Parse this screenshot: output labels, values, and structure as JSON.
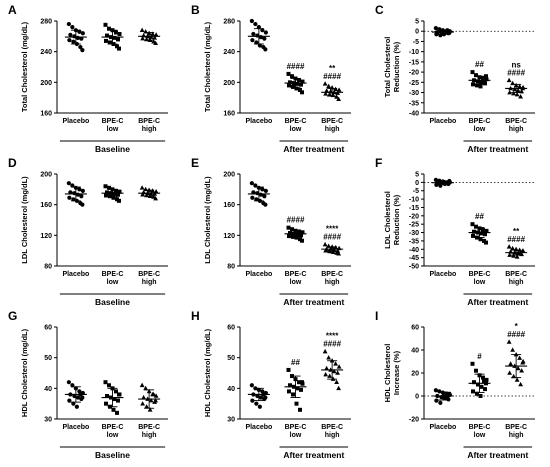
{
  "chart_data": [
    {
      "panel": "A",
      "type": "scatter",
      "ylabel": "Total Cholesterol (mg/dL)",
      "ylim": [
        160,
        280
      ],
      "yticks": [
        160,
        200,
        240,
        280
      ],
      "categories": [
        [
          "Placebo"
        ],
        [
          "BPE-C",
          "low"
        ],
        [
          "BPE-C",
          "high"
        ]
      ],
      "group_label": "Baseline",
      "group_span": [
        0,
        2
      ],
      "ref_line": null,
      "series": [
        {
          "marker": "circle",
          "values": [
            276,
            272,
            268,
            266,
            264,
            262,
            260,
            258,
            257,
            255,
            253,
            250,
            246,
            242
          ],
          "mean": 259,
          "sd": 9,
          "annotations": []
        },
        {
          "marker": "square",
          "values": [
            275,
            270,
            268,
            265,
            263,
            261,
            259,
            258,
            256,
            254,
            252,
            250,
            247,
            244
          ],
          "mean": 259,
          "sd": 9,
          "annotations": []
        },
        {
          "marker": "triangle",
          "values": [
            268,
            266,
            264,
            263,
            262,
            261,
            260,
            259,
            258,
            257,
            256,
            255,
            253,
            251
          ],
          "mean": 260,
          "sd": 5,
          "annotations": []
        }
      ]
    },
    {
      "panel": "B",
      "type": "scatter",
      "ylabel": "Total Cholesterol (mg/dL)",
      "ylim": [
        160,
        280
      ],
      "yticks": [
        160,
        200,
        240,
        280
      ],
      "categories": [
        [
          "Placebo"
        ],
        [
          "BPE-C",
          "low"
        ],
        [
          "BPE-C",
          "high"
        ]
      ],
      "group_label": "After treatment",
      "group_span": [
        1,
        2
      ],
      "ref_line": null,
      "series": [
        {
          "marker": "circle",
          "values": [
            280,
            276,
            272,
            268,
            265,
            263,
            261,
            259,
            257,
            255,
            252,
            248,
            246,
            243
          ],
          "mean": 260,
          "sd": 10,
          "annotations": []
        },
        {
          "marker": "square",
          "values": [
            211,
            208,
            205,
            203,
            201,
            200,
            199,
            198,
            197,
            196,
            194,
            192,
            190,
            187
          ],
          "mean": 199,
          "sd": 6,
          "annotations": [
            "####"
          ]
        },
        {
          "marker": "triangle",
          "values": [
            198,
            195,
            193,
            191,
            190,
            189,
            188,
            187,
            186,
            185,
            184,
            183,
            181,
            178
          ],
          "mean": 187,
          "sd": 5,
          "annotations": [
            "**",
            "####"
          ]
        }
      ]
    },
    {
      "panel": "C",
      "type": "scatter",
      "ylabel": "Total Cholesterol Reduction (%)",
      "ylim": [
        -40,
        5
      ],
      "yticks": [
        -40,
        -35,
        -30,
        -25,
        -20,
        -15,
        -10,
        -5,
        0,
        5
      ],
      "categories": [
        [
          "Placebo"
        ],
        [
          "BPE-C",
          "low"
        ],
        [
          "BPE-C",
          "high"
        ]
      ],
      "group_label": "After treatment",
      "group_span": [
        1,
        2
      ],
      "ref_line": 0,
      "series": [
        {
          "marker": "circle",
          "values": [
            1.5,
            1,
            0.5,
            0,
            0,
            -0.5,
            -0.5,
            -1,
            -1,
            -1.5,
            -2,
            -1.5,
            0.5,
            -0.8
          ],
          "mean": -0.4,
          "sd": 1,
          "annotations": []
        },
        {
          "marker": "square",
          "values": [
            -20,
            -21.5,
            -22.5,
            -23,
            -23.5,
            -24,
            -24.5,
            -25,
            -25.5,
            -26,
            -26.5,
            -27,
            -24,
            -22
          ],
          "mean": -24,
          "sd": 2,
          "annotations": [
            "##"
          ]
        },
        {
          "marker": "triangle",
          "values": [
            -24,
            -25.5,
            -26.5,
            -27,
            -27.5,
            -28,
            -28.5,
            -29,
            -29.5,
            -30,
            -30.5,
            -31,
            -32,
            -28
          ],
          "mean": -28,
          "sd": 2,
          "annotations": [
            "ns",
            "####"
          ]
        }
      ]
    },
    {
      "panel": "D",
      "type": "scatter",
      "ylabel": "LDL Cholesterol (mg/dL)",
      "ylim": [
        80,
        200
      ],
      "yticks": [
        80,
        120,
        160,
        200
      ],
      "categories": [
        [
          "Placebo"
        ],
        [
          "BPE-C",
          "low"
        ],
        [
          "BPE-C",
          "high"
        ]
      ],
      "group_label": "Baseline",
      "group_span": [
        0,
        2
      ],
      "ref_line": null,
      "series": [
        {
          "marker": "circle",
          "values": [
            188,
            185,
            182,
            180,
            178,
            176,
            175,
            173,
            171,
            169,
            167,
            165,
            162,
            160
          ],
          "mean": 174,
          "sd": 9,
          "annotations": []
        },
        {
          "marker": "square",
          "values": [
            184,
            182,
            180,
            178,
            177,
            176,
            175,
            174,
            173,
            172,
            171,
            169,
            167,
            165
          ],
          "mean": 175,
          "sd": 5,
          "annotations": []
        },
        {
          "marker": "triangle",
          "values": [
            182,
            180,
            179,
            178,
            177,
            176,
            175,
            174,
            174,
            173,
            172,
            171,
            170,
            168
          ],
          "mean": 175,
          "sd": 4,
          "annotations": []
        }
      ]
    },
    {
      "panel": "E",
      "type": "scatter",
      "ylabel": "LDL Cholesterol (mg/dL)",
      "ylim": [
        80,
        200
      ],
      "yticks": [
        80,
        120,
        160,
        200
      ],
      "categories": [
        [
          "Placebo"
        ],
        [
          "BPE-C",
          "low"
        ],
        [
          "BPE-C",
          "high"
        ]
      ],
      "group_label": "After treatment",
      "group_span": [
        1,
        2
      ],
      "ref_line": null,
      "series": [
        {
          "marker": "circle",
          "values": [
            188,
            185,
            182,
            180,
            178,
            176,
            175,
            173,
            171,
            169,
            167,
            165,
            162,
            160
          ],
          "mean": 174,
          "sd": 9,
          "annotations": []
        },
        {
          "marker": "square",
          "values": [
            130,
            128,
            126,
            125,
            124,
            123,
            122,
            121,
            120,
            119,
            118,
            117,
            115,
            113
          ],
          "mean": 122,
          "sd": 4,
          "annotations": [
            "####"
          ]
        },
        {
          "marker": "triangle",
          "values": [
            108,
            106,
            105,
            104,
            103,
            102,
            102,
            101,
            100,
            100,
            99,
            98,
            97,
            96
          ],
          "mean": 102,
          "sd": 3,
          "annotations": [
            "****",
            "####"
          ]
        }
      ]
    },
    {
      "panel": "F",
      "type": "scatter",
      "ylabel": "LDL Cholesterol Reduction (%)",
      "ylim": [
        -50,
        5
      ],
      "yticks": [
        -50,
        -45,
        -40,
        -35,
        -30,
        -25,
        -20,
        -15,
        -10,
        -5,
        0,
        5
      ],
      "categories": [
        [
          "Placebo"
        ],
        [
          "BPE-C",
          "low"
        ],
        [
          "BPE-C",
          "high"
        ]
      ],
      "group_label": "After treatment",
      "group_span": [
        1,
        2
      ],
      "ref_line": 0,
      "series": [
        {
          "marker": "circle",
          "values": [
            1.5,
            1,
            0.5,
            0,
            0,
            -0.5,
            -0.5,
            -1,
            -1,
            -1.5,
            -2,
            0.2,
            -0.2,
            0.8
          ],
          "mean": -0.2,
          "sd": 1,
          "annotations": []
        },
        {
          "marker": "square",
          "values": [
            -25,
            -26.5,
            -27.5,
            -28.5,
            -29,
            -29.5,
            -30,
            -30.5,
            -31,
            -32,
            -33,
            -34,
            -35,
            -36
          ],
          "mean": -30,
          "sd": 3,
          "annotations": [
            "##"
          ]
        },
        {
          "marker": "triangle",
          "values": [
            -38.5,
            -39.5,
            -40,
            -40.5,
            -41,
            -41.5,
            -42,
            -42.5,
            -43,
            -43.5,
            -44,
            -44.5,
            -42,
            -41
          ],
          "mean": -42,
          "sd": 1.5,
          "annotations": [
            "**",
            "####"
          ]
        }
      ]
    },
    {
      "panel": "G",
      "type": "scatter",
      "ylabel": "HDL Cholesterol (mg/dL)",
      "ylim": [
        30,
        60
      ],
      "yticks": [
        30,
        40,
        50,
        60
      ],
      "categories": [
        [
          "Placebo"
        ],
        [
          "BPE-C",
          "low"
        ],
        [
          "BPE-C",
          "high"
        ]
      ],
      "group_label": "Baseline",
      "group_span": [
        0,
        2
      ],
      "ref_line": null,
      "series": [
        {
          "marker": "circle",
          "values": [
            42,
            41,
            40,
            39,
            38.5,
            38,
            37.5,
            37,
            36.5,
            36,
            35,
            34,
            38,
            37
          ],
          "mean": 38,
          "sd": 2.5,
          "annotations": []
        },
        {
          "marker": "square",
          "values": [
            42,
            41,
            40,
            39,
            38,
            37.5,
            37,
            36.5,
            36,
            35,
            34,
            33,
            32,
            38
          ],
          "mean": 37,
          "sd": 3,
          "annotations": []
        },
        {
          "marker": "triangle",
          "values": [
            41,
            40,
            39,
            38,
            37.5,
            37,
            36.5,
            36,
            35.5,
            35,
            34,
            33,
            38,
            36
          ],
          "mean": 36.5,
          "sd": 3,
          "annotations": []
        }
      ]
    },
    {
      "panel": "H",
      "type": "scatter",
      "ylabel": "HDL Cholesterol (mg/dL)",
      "ylim": [
        30,
        60
      ],
      "yticks": [
        30,
        40,
        50,
        60
      ],
      "categories": [
        [
          "Placebo"
        ],
        [
          "BPE-C",
          "low"
        ],
        [
          "BPE-C",
          "high"
        ]
      ],
      "group_label": "After treatment",
      "group_span": [
        1,
        2
      ],
      "ref_line": null,
      "series": [
        {
          "marker": "circle",
          "values": [
            41,
            40,
            39.5,
            39,
            38.5,
            38,
            37.5,
            37,
            36.5,
            36,
            35,
            34,
            38,
            37
          ],
          "mean": 38,
          "sd": 2,
          "annotations": []
        },
        {
          "marker": "square",
          "values": [
            46,
            44,
            43,
            42,
            41.5,
            41,
            40.5,
            40,
            39.5,
            39,
            38,
            35,
            33,
            42
          ],
          "mean": 40.5,
          "sd": 3.5,
          "annotations": [
            "##"
          ]
        },
        {
          "marker": "triangle",
          "values": [
            52,
            50,
            49,
            48,
            47,
            46.5,
            46,
            45.5,
            45,
            44.5,
            44,
            43,
            42,
            40
          ],
          "mean": 46,
          "sd": 3,
          "annotations": [
            "****",
            "####"
          ]
        }
      ]
    },
    {
      "panel": "I",
      "type": "scatter",
      "ylabel": "HDL Cholesterol Increase (%)",
      "ylim": [
        -20,
        60
      ],
      "yticks": [
        -20,
        0,
        20,
        40,
        60
      ],
      "categories": [
        [
          "Placebo"
        ],
        [
          "BPE-C",
          "low"
        ],
        [
          "BPE-C",
          "high"
        ]
      ],
      "group_label": "After treatment",
      "group_span": [
        1,
        2
      ],
      "ref_line": 0,
      "series": [
        {
          "marker": "circle",
          "values": [
            5,
            4,
            3,
            2,
            1,
            0,
            -1,
            -2,
            -3,
            -4,
            -6,
            1,
            -1,
            2
          ],
          "mean": 0,
          "sd": 3.5,
          "annotations": []
        },
        {
          "marker": "square",
          "values": [
            28,
            22,
            18,
            16,
            14,
            12,
            10,
            8,
            6,
            4,
            2,
            0,
            13,
            11
          ],
          "mean": 11,
          "sd": 8,
          "annotations": [
            "#"
          ]
        },
        {
          "marker": "triangle",
          "values": [
            47,
            40,
            36,
            33,
            30,
            28,
            26,
            24,
            22,
            20,
            17,
            14,
            10,
            29
          ],
          "mean": 26,
          "sd": 10,
          "annotations": [
            "*",
            "####"
          ]
        }
      ]
    }
  ]
}
